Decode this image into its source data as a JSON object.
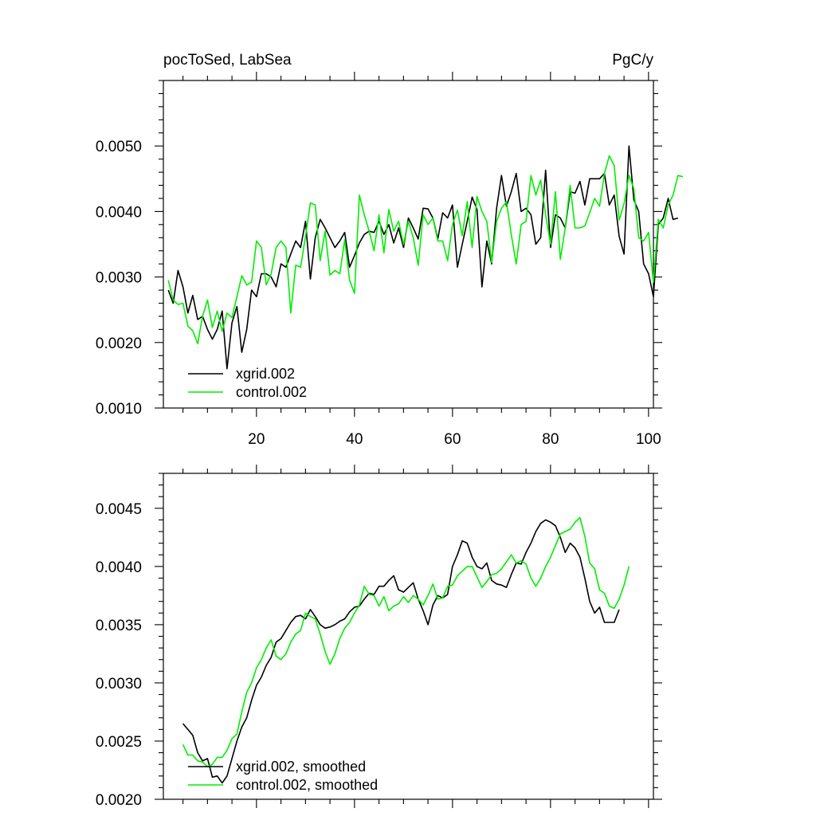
{
  "header": {
    "left_title": "pocToSed, LabSea",
    "right_units": "PgC/y"
  },
  "colors": {
    "xgrid": "#000000",
    "control": "#00ee00"
  },
  "chart_data": [
    {
      "type": "line",
      "xlim": [
        1,
        101
      ],
      "ylim": [
        0.001,
        0.006
      ],
      "x_ticks": [
        20,
        40,
        60,
        80,
        100
      ],
      "y_ticks": [
        "0.0010",
        "0.0020",
        "0.0030",
        "0.0040",
        "0.0050"
      ],
      "legend": {
        "location": "bottom-left"
      },
      "series": [
        {
          "name": "xgrid.002",
          "color": "#000000",
          "x_start": 2,
          "values": [
            0.0028,
            0.0026,
            0.0031,
            0.00285,
            0.00245,
            0.00272,
            0.00235,
            0.0024,
            0.0022,
            0.00205,
            0.0022,
            0.00248,
            0.0016,
            0.0023,
            0.00255,
            0.00185,
            0.0022,
            0.0028,
            0.0027,
            0.00305,
            0.00305,
            0.003,
            0.00285,
            0.0032,
            0.00315,
            0.00335,
            0.00355,
            0.00345,
            0.00385,
            0.00297,
            0.0036,
            0.00388,
            0.00375,
            0.0036,
            0.00345,
            0.00355,
            0.00368,
            0.00315,
            0.00333,
            0.00352,
            0.00365,
            0.0037,
            0.00368,
            0.00385,
            0.00365,
            0.0038,
            0.00352,
            0.00375,
            0.00345,
            0.0039,
            0.00375,
            0.00358,
            0.00405,
            0.00404,
            0.0039,
            0.00358,
            0.00398,
            0.0039,
            0.0041,
            0.00315,
            0.0035,
            0.00385,
            0.00422,
            0.00403,
            0.00285,
            0.00355,
            0.0032,
            0.00405,
            0.00455,
            0.00408,
            0.0043,
            0.00458,
            0.004,
            0.00405,
            0.00395,
            0.0035,
            0.0036,
            0.00463,
            0.00345,
            0.00395,
            0.0039,
            0.00375,
            0.0043,
            0.00428,
            0.00446,
            0.0041,
            0.0045,
            0.0045,
            0.0045,
            0.00458,
            0.0041,
            0.00425,
            0.00362,
            0.00335,
            0.005,
            0.00418,
            0.004,
            0.0032,
            0.00305,
            0.0027,
            0.0038,
            0.0039,
            0.0042,
            0.00388,
            0.0039
          ]
        },
        {
          "name": "control.002",
          "color": "#00ee00",
          "x_start": 2,
          "values": [
            0.00295,
            0.00265,
            0.00258,
            0.0026,
            0.00225,
            0.00218,
            0.00198,
            0.0024,
            0.00265,
            0.00223,
            0.00248,
            0.00217,
            0.00245,
            0.00238,
            0.0027,
            0.00302,
            0.00288,
            0.00292,
            0.00355,
            0.00345,
            0.00288,
            0.00305,
            0.00345,
            0.00355,
            0.00345,
            0.00245,
            0.00318,
            0.00315,
            0.00362,
            0.00413,
            0.0041,
            0.00325,
            0.0037,
            0.00303,
            0.0031,
            0.00305,
            0.00357,
            0.00295,
            0.00275,
            0.00425,
            0.00395,
            0.0037,
            0.0034,
            0.00395,
            0.00337,
            0.00403,
            0.0037,
            0.00385,
            0.0035,
            0.00385,
            0.0036,
            0.00318,
            0.00395,
            0.0038,
            0.0039,
            0.00355,
            0.00355,
            0.00325,
            0.0038,
            0.00402,
            0.00363,
            0.00415,
            0.00345,
            0.00423,
            0.004,
            0.00385,
            0.00322,
            0.00385,
            0.00405,
            0.00415,
            0.00365,
            0.0032,
            0.0038,
            0.00385,
            0.00455,
            0.00425,
            0.00448,
            0.00395,
            0.0035,
            0.0043,
            0.00327,
            0.00375,
            0.0044,
            0.00375,
            0.00375,
            0.00378,
            0.00398,
            0.0042,
            0.00408,
            0.00458,
            0.00485,
            0.0047,
            0.00387,
            0.00412,
            0.00455,
            0.00435,
            0.0036,
            0.00355,
            0.00368,
            0.00292,
            0.00388,
            0.00375,
            0.0041,
            0.00425,
            0.00455,
            0.00453
          ]
        }
      ]
    },
    {
      "type": "line",
      "xlim": [
        1,
        101
      ],
      "ylim": [
        0.002,
        0.0048
      ],
      "x_ticks": [
        20,
        40,
        60,
        80,
        100
      ],
      "y_ticks": [
        "0.0020",
        "0.0025",
        "0.0030",
        "0.0035",
        "0.0040",
        "0.0045"
      ],
      "legend": {
        "location": "bottom-left"
      },
      "series": [
        {
          "name": "xgrid.002, smoothed",
          "color": "#000000",
          "x_start": 5,
          "values": [
            0.00265,
            0.0026,
            0.00255,
            0.0024,
            0.00233,
            0.00235,
            0.00219,
            0.0022,
            0.00214,
            0.0022,
            0.00235,
            0.0025,
            0.00262,
            0.0027,
            0.00285,
            0.00298,
            0.00305,
            0.00315,
            0.00322,
            0.00335,
            0.00338,
            0.00345,
            0.00352,
            0.00357,
            0.00358,
            0.00355,
            0.00363,
            0.00357,
            0.0035,
            0.00347,
            0.00348,
            0.0035,
            0.00353,
            0.00355,
            0.00361,
            0.00365,
            0.00366,
            0.00372,
            0.00377,
            0.00376,
            0.00383,
            0.00383,
            0.00388,
            0.00392,
            0.0038,
            0.00378,
            0.00382,
            0.00386,
            0.00372,
            0.00362,
            0.0035,
            0.00367,
            0.00375,
            0.00373,
            0.00376,
            0.004,
            0.0041,
            0.00422,
            0.0042,
            0.00408,
            0.004,
            0.00398,
            0.00403,
            0.00388,
            0.00385,
            0.00384,
            0.00382,
            0.00393,
            0.00403,
            0.00402,
            0.00412,
            0.0042,
            0.0043,
            0.00437,
            0.0044,
            0.00438,
            0.00435,
            0.00425,
            0.00412,
            0.0042,
            0.00416,
            0.00408,
            0.0039,
            0.0037,
            0.0036,
            0.00365,
            0.00352,
            0.00352,
            0.00352,
            0.00363
          ]
        },
        {
          "name": "control.002, smoothed",
          "color": "#00ee00",
          "x_start": 5,
          "values": [
            0.00247,
            0.00238,
            0.00238,
            0.00233,
            0.00232,
            0.00228,
            0.0023,
            0.00236,
            0.00236,
            0.00242,
            0.00252,
            0.00256,
            0.00275,
            0.00292,
            0.003,
            0.00313,
            0.0032,
            0.0033,
            0.00337,
            0.00323,
            0.0032,
            0.00325,
            0.00335,
            0.00342,
            0.00345,
            0.0036,
            0.00357,
            0.00355,
            0.00342,
            0.00327,
            0.00316,
            0.00325,
            0.00338,
            0.00347,
            0.00352,
            0.0036,
            0.00367,
            0.00383,
            0.00376,
            0.00375,
            0.00366,
            0.00374,
            0.00362,
            0.00366,
            0.00368,
            0.00374,
            0.00369,
            0.00375,
            0.00372,
            0.00367,
            0.00375,
            0.00385,
            0.00372,
            0.00373,
            0.00383,
            0.00384,
            0.00392,
            0.00396,
            0.004,
            0.004,
            0.00391,
            0.00382,
            0.00387,
            0.00393,
            0.00394,
            0.00398,
            0.00404,
            0.0041,
            0.00403,
            0.00405,
            0.00402,
            0.0039,
            0.00383,
            0.0039,
            0.004,
            0.00408,
            0.00418,
            0.00428,
            0.0043,
            0.00432,
            0.00438,
            0.00442,
            0.00426,
            0.00403,
            0.00398,
            0.0038,
            0.00377,
            0.00366,
            0.00364,
            0.00372,
            0.00384,
            0.004
          ]
        }
      ]
    }
  ]
}
